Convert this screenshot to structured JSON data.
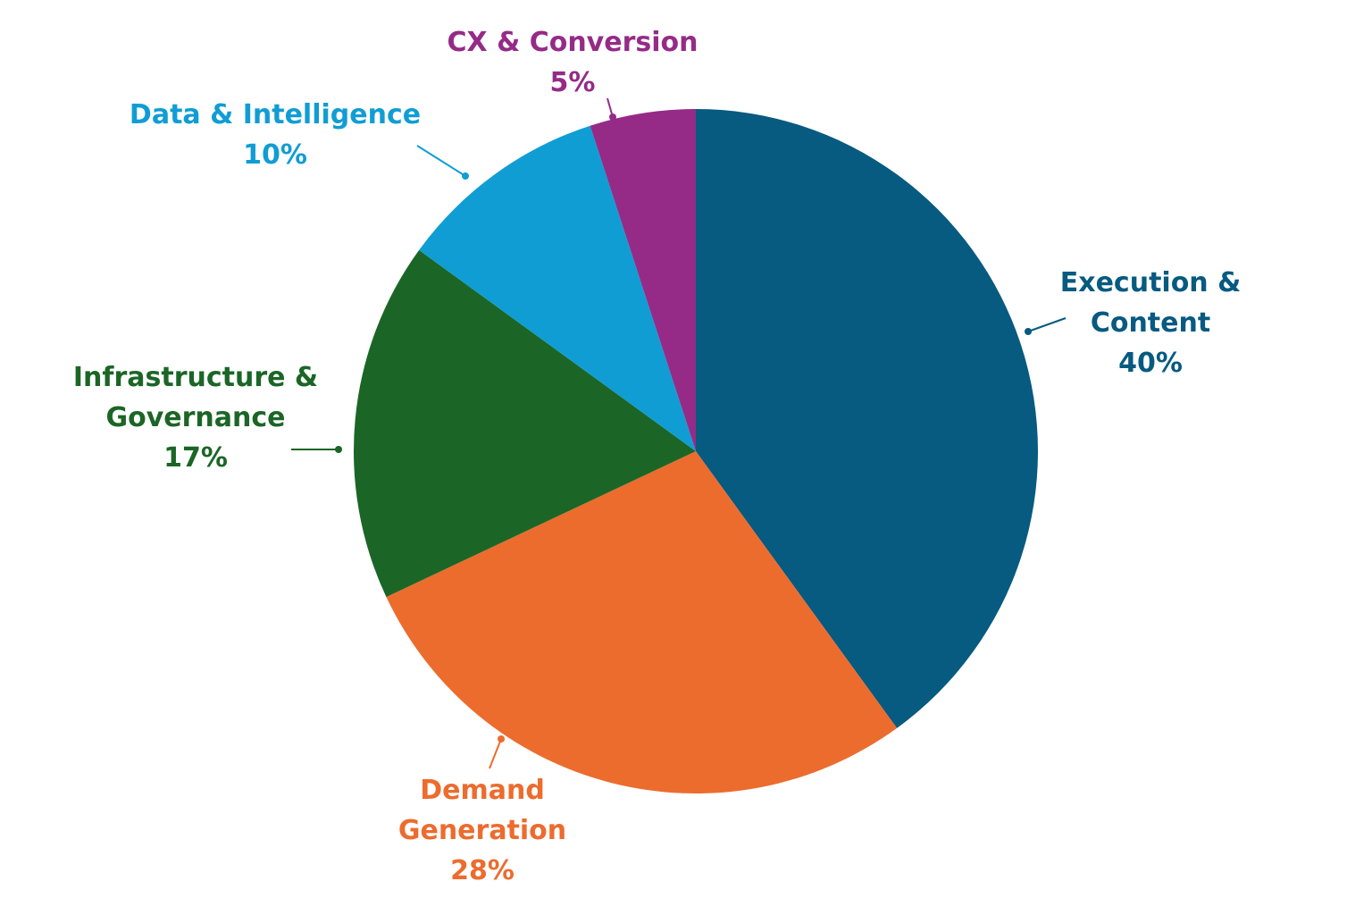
{
  "chart_data": {
    "type": "pie",
    "start": "12 o'clock, clockwise",
    "slices": [
      {
        "label": "Execution & Content",
        "lines": [
          "Execution &",
          "Content"
        ],
        "value": 40,
        "value_label": "40%",
        "color": "#075a80"
      },
      {
        "label": "Demand Generation",
        "lines": [
          "Demand",
          "Generation"
        ],
        "value": 28,
        "value_label": "28%",
        "color": "#ec6c2e"
      },
      {
        "label": "Infrastructure & Governance",
        "lines": [
          "Infrastructure &",
          "Governance"
        ],
        "value": 17,
        "value_label": "17%",
        "color": "#1b6626"
      },
      {
        "label": "Data & Intelligence",
        "lines": [
          "Data & Intelligence"
        ],
        "value": 10,
        "value_label": "10%",
        "color": "#109dd4"
      },
      {
        "label": "CX & Conversion",
        "lines": [
          "CX & Conversion"
        ],
        "value": 5,
        "value_label": "5%",
        "color": "#952b87"
      }
    ]
  }
}
